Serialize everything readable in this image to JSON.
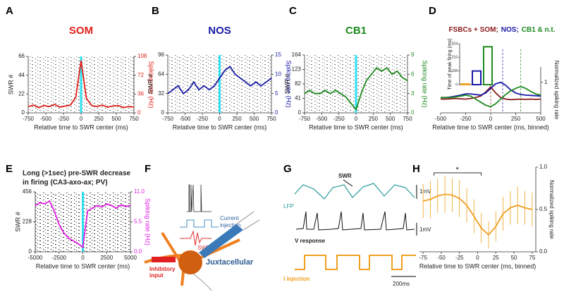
{
  "chart_data": [
    {
      "type": "line",
      "panel": "A",
      "title": "SOM",
      "title_color": "#e0201b",
      "raster": true,
      "xlabel": "Relative time to SWR center (ms)",
      "ylabel": "SWR #",
      "y2label": "Spiking rate (Hz)",
      "xlim": [
        -750,
        750
      ],
      "xticks": [
        -750,
        -500,
        -250,
        0,
        250,
        500,
        750
      ],
      "ylim": [
        0,
        66
      ],
      "yticks": [
        0,
        22,
        44,
        66
      ],
      "y2lim": [
        0,
        108
      ],
      "y2ticks": [
        0,
        36,
        72,
        108
      ],
      "vline": 0,
      "x": [
        -750,
        -675,
        -600,
        -525,
        -450,
        -375,
        -300,
        -225,
        -150,
        -75,
        0,
        75,
        150,
        225,
        300,
        375,
        450,
        525,
        600,
        675,
        750
      ],
      "series": [
        {
          "name": "SOM",
          "color": "#e0201b",
          "axis": "y2",
          "values": [
            12,
            15,
            10,
            14,
            12,
            16,
            11,
            13,
            15,
            30,
            100,
            28,
            14,
            12,
            15,
            11,
            13,
            14,
            10,
            12,
            11
          ]
        }
      ]
    },
    {
      "type": "line",
      "panel": "B",
      "title": "NOS",
      "title_color": "#1a1aa8",
      "raster": true,
      "xlabel": "Relative time to SWR center (ms)",
      "ylabel": "SWR #",
      "y2label": "Spiking rate (Hz)",
      "xlim": [
        -750,
        750
      ],
      "xticks": [
        -750,
        -500,
        -250,
        0,
        250,
        500,
        750
      ],
      "ylim": [
        0,
        96
      ],
      "yticks": [
        0,
        32,
        64,
        96
      ],
      "y2lim": [
        0,
        15
      ],
      "y2ticks": [
        0,
        5,
        10,
        15
      ],
      "vline": 0,
      "x": [
        -750,
        -675,
        -600,
        -525,
        -450,
        -375,
        -300,
        -225,
        -150,
        -75,
        0,
        75,
        150,
        225,
        300,
        375,
        450,
        525,
        600,
        675,
        750
      ],
      "series": [
        {
          "name": "NOS",
          "color": "#1a1aa8",
          "axis": "y2",
          "values": [
            5,
            6,
            7,
            5,
            6,
            8,
            6,
            7,
            6,
            7,
            9,
            11,
            12,
            10,
            9,
            8,
            7,
            8,
            7,
            8,
            9
          ]
        }
      ]
    },
    {
      "type": "line",
      "panel": "C",
      "title": "CB1",
      "title_color": "#1e8a1e",
      "raster": true,
      "xlabel": "Relative time to SWR center (ms)",
      "ylabel": "SWR #",
      "y2label": "Spiking rate (Hz)",
      "xlim": [
        -750,
        750
      ],
      "xticks": [
        -750,
        -500,
        -250,
        0,
        250,
        500,
        750
      ],
      "ylim": [
        0,
        164
      ],
      "yticks": [
        0,
        41,
        82,
        123,
        164
      ],
      "y2lim": [
        0,
        9
      ],
      "y2ticks": [
        0,
        3,
        6,
        9
      ],
      "vline": 0,
      "x": [
        -750,
        -675,
        -600,
        -525,
        -450,
        -375,
        -300,
        -225,
        -150,
        -75,
        0,
        75,
        150,
        225,
        300,
        375,
        450,
        525,
        600,
        675,
        750
      ],
      "series": [
        {
          "name": "CB1",
          "color": "#1e8a1e",
          "axis": "y2",
          "values": [
            3,
            3.5,
            3,
            3,
            3.5,
            3,
            3.5,
            3,
            2.5,
            1.5,
            0.5,
            3,
            5,
            6,
            7,
            6.5,
            7,
            6,
            6.5,
            5.5,
            5
          ]
        }
      ]
    },
    {
      "type": "line",
      "panel": "D",
      "title_parts": [
        {
          "text": "FSBCs + SOM;",
          "color": "#8b1a1a"
        },
        {
          "text": "NOS;",
          "color": "#1a1aa8"
        },
        {
          "text": "CB1 & n.t.",
          "color": "#1e8a1e"
        }
      ],
      "xlabel": "Relative time to SWR center (ms, binned)",
      "y_side": "right",
      "ylabel": "Normalized spiking rate",
      "xlim": [
        -500,
        500
      ],
      "xticks": [
        -500,
        -250,
        0,
        250,
        500
      ],
      "ylim": [
        0,
        1.5
      ],
      "yticks": [
        1
      ],
      "vlines": [
        0,
        120,
        300
      ],
      "x": [
        -500,
        -450,
        -400,
        -350,
        -300,
        -250,
        -200,
        -150,
        -100,
        -50,
        0,
        50,
        100,
        150,
        200,
        250,
        300,
        350,
        400,
        450,
        500
      ],
      "series": [
        {
          "name": "FSBCs + SOM",
          "color": "#8b1a1a",
          "values": [
            0.45,
            0.45,
            0.46,
            0.47,
            0.46,
            0.45,
            0.47,
            0.5,
            0.55,
            0.68,
            0.85,
            0.65,
            0.5,
            0.45,
            0.43,
            0.44,
            0.45,
            0.44,
            0.45,
            0.44,
            0.45
          ]
        },
        {
          "name": "NOS",
          "color": "#1a1aa8",
          "values": [
            0.5,
            0.5,
            0.52,
            0.55,
            0.58,
            0.62,
            0.62,
            0.6,
            0.58,
            0.65,
            0.8,
            0.95,
            1.0,
            0.9,
            0.75,
            0.65,
            0.6,
            0.58,
            0.57,
            0.56,
            0.55
          ]
        },
        {
          "name": "CB1 & n.t.",
          "color": "#1e8a1e",
          "values": [
            0.5,
            0.5,
            0.5,
            0.52,
            0.55,
            0.58,
            0.55,
            0.45,
            0.35,
            0.25,
            0.2,
            0.3,
            0.45,
            0.6,
            0.72,
            0.8,
            0.86,
            0.8,
            0.7,
            0.62,
            0.58
          ]
        }
      ],
      "inset": {
        "ylabel": "Time of peak firing (ms)",
        "ylim": [
          0,
          324
        ],
        "yticks": [
          0,
          108,
          216,
          324
        ],
        "values": [
          5,
          108,
          300
        ],
        "colors": [
          "#f0a020",
          "#1a1aa8",
          "#1e8a1e"
        ]
      }
    },
    {
      "type": "line",
      "panel": "E",
      "title_lines": [
        "Long (>1sec) pre-SWR decrease",
        "in firing (CA3-axo-ax; PV)"
      ],
      "raster": true,
      "xlabel": "Relative time to SWR center (ms)",
      "ylabel": "SWR #",
      "y2label": "Spiking rate (Hz)",
      "xlim": [
        -5000,
        5000
      ],
      "xticks": [
        -5000,
        -2500,
        0,
        2500,
        5000
      ],
      "ylim": [
        0,
        456
      ],
      "yticks": [
        0,
        228,
        456
      ],
      "y2lim": [
        0,
        11
      ],
      "y2ticks": [
        {
          "value": 0,
          "label": "0.0"
        },
        5.5,
        {
          "value": 11,
          "label": "11.0"
        }
      ],
      "vline": 0,
      "x": [
        -5000,
        -4500,
        -4000,
        -3500,
        -3000,
        -2500,
        -2000,
        -1500,
        -1000,
        -500,
        0,
        500,
        1000,
        1500,
        2000,
        2500,
        3000,
        3500,
        4000,
        4500,
        5000
      ],
      "series": [
        {
          "name": "CA3-axo-ax; PV",
          "color": "#e020e0",
          "axis": "y2",
          "values": [
            8.5,
            9,
            8.8,
            9.3,
            7.5,
            5,
            3.5,
            2.5,
            2,
            1.5,
            0.8,
            7.5,
            8,
            8.5,
            8.2,
            8.8,
            8.5,
            8,
            8.6,
            8.3,
            8.5
          ]
        }
      ]
    },
    {
      "type": "line",
      "panel": "H",
      "significance": "*",
      "xlabel": "Relative time to SWR center (ms, binned)",
      "y_side": "right",
      "ylabel": "Normalized spiking rate",
      "xlim": [
        -80,
        80
      ],
      "xticks": [
        -75,
        -50,
        -25,
        0,
        25,
        50,
        75
      ],
      "ylim": [
        0,
        1
      ],
      "yticks": [
        {
          "value": 0,
          "label": "0.0"
        },
        0.5,
        {
          "value": 1,
          "label": "1.0"
        }
      ],
      "x": [
        -75,
        -65,
        -55,
        -45,
        -35,
        -25,
        -15,
        -5,
        5,
        15,
        25,
        35,
        45,
        55,
        65,
        75
      ],
      "series": [
        {
          "name": "Normalized spiking rate",
          "color": "#f0a020",
          "values": [
            0.6,
            0.62,
            0.66,
            0.68,
            0.67,
            0.63,
            0.55,
            0.42,
            0.28,
            0.2,
            0.3,
            0.45,
            0.52,
            0.55,
            0.52,
            0.5
          ],
          "errors": [
            0.2,
            0.22,
            0.2,
            0.22,
            0.2,
            0.22,
            0.2,
            0.2,
            0.18,
            0.16,
            0.18,
            0.2,
            0.2,
            0.22,
            0.2,
            0.2
          ]
        }
      ]
    }
  ],
  "diagram_f": {
    "panel": "F",
    "current": [
      "Current",
      "injection"
    ],
    "swr": "SWR",
    "juxtacellular": "Juxtacellular",
    "inhibitory": [
      "Inhibitory",
      "input"
    ]
  },
  "diagram_g": {
    "panel": "G",
    "swr": "SWR",
    "lfp": "LFP",
    "scale1": "1mV",
    "scale2": "1mV",
    "vresponse": "V response",
    "iinjection": "I injection",
    "time": "200ms"
  }
}
